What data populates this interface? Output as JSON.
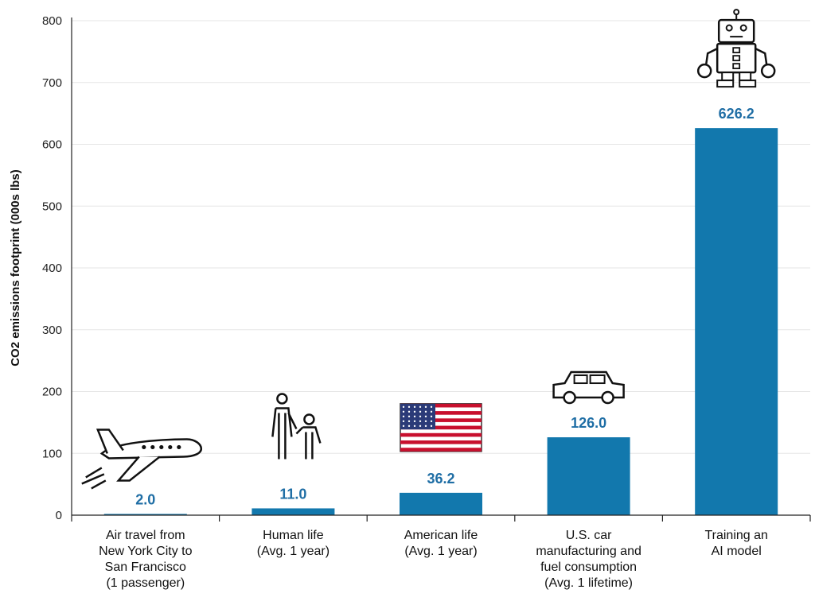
{
  "chart_data": {
    "type": "bar",
    "title": "",
    "xlabel": "",
    "ylabel": "CO2 emissions footprint (000s lbs)",
    "ylim": [
      0,
      800
    ],
    "yticks": [
      0,
      100,
      200,
      300,
      400,
      500,
      600,
      700,
      800
    ],
    "grid": true,
    "categories": [
      [
        "Air travel from",
        "New York City to",
        "San Francisco",
        "(1 passenger)"
      ],
      [
        "Human life",
        "(Avg. 1 year)"
      ],
      [
        "American life",
        "(Avg. 1 year)"
      ],
      [
        "U.S. car",
        "manufacturing and",
        "fuel consumption",
        "(Avg. 1 lifetime)"
      ],
      [
        "Training an",
        "AI model"
      ]
    ],
    "values": [
      2.0,
      11.0,
      36.2,
      126.0,
      626.2
    ],
    "value_labels": [
      "2.0",
      "11.0",
      "36.2",
      "126.0",
      "626.2"
    ],
    "icons": [
      "airplane-icon",
      "parent-child-icon",
      "us-flag-icon",
      "car-icon",
      "robot-icon"
    ],
    "colors": {
      "bar": "#1278ad",
      "label": "#1f6ea5",
      "axis": "#222222",
      "grid": "#e6e6e6"
    }
  }
}
